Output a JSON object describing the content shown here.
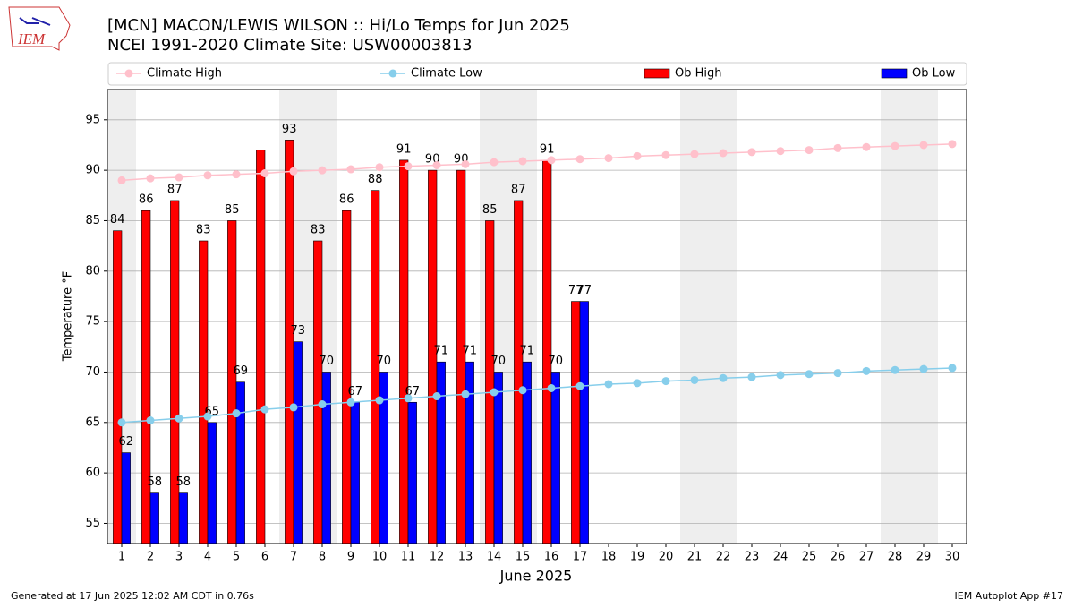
{
  "header": {
    "logo_text": "IEM"
  },
  "chart_data": {
    "type": "bar",
    "title": "[MCN] MACON/LEWIS WILSON :: Hi/Lo Temps for Jun 2025",
    "subtitle": "NCEI 1991-2020 Climate Site: USW00003813",
    "x_label": "June 2025",
    "y_label": "Temperature °F",
    "x": [
      1,
      2,
      3,
      4,
      5,
      6,
      7,
      8,
      9,
      10,
      11,
      12,
      13,
      14,
      15,
      16,
      17,
      18,
      19,
      20,
      21,
      22,
      23,
      24,
      25,
      26,
      27,
      28,
      29,
      30
    ],
    "xlim": [
      0.5,
      30.5
    ],
    "xticks": [
      1,
      2,
      3,
      4,
      5,
      6,
      7,
      8,
      9,
      10,
      11,
      12,
      13,
      14,
      15,
      16,
      17,
      18,
      19,
      20,
      21,
      22,
      23,
      24,
      25,
      26,
      27,
      28,
      29,
      30
    ],
    "ylim": [
      53,
      98
    ],
    "yticks": [
      55,
      60,
      65,
      70,
      75,
      80,
      85,
      90,
      95
    ],
    "grid": "y",
    "shaded_days": [
      1,
      7,
      8,
      14,
      15,
      21,
      22,
      28,
      29
    ],
    "legend": "top",
    "series": [
      {
        "name": "Climate High",
        "type": "line",
        "color": "#ffc0cb",
        "values": [
          89.0,
          89.2,
          89.3,
          89.5,
          89.6,
          89.7,
          89.9,
          90.0,
          90.1,
          90.3,
          90.4,
          90.5,
          90.6,
          90.8,
          90.9,
          91.0,
          91.1,
          91.2,
          91.4,
          91.5,
          91.6,
          91.7,
          91.8,
          91.9,
          92.0,
          92.2,
          92.3,
          92.4,
          92.5,
          92.6
        ]
      },
      {
        "name": "Climate Low",
        "type": "line",
        "color": "#87ceeb",
        "values": [
          65.0,
          65.2,
          65.4,
          65.6,
          65.9,
          66.3,
          66.5,
          66.8,
          67.0,
          67.2,
          67.4,
          67.6,
          67.8,
          68.0,
          68.2,
          68.4,
          68.6,
          68.8,
          68.9,
          69.1,
          69.2,
          69.4,
          69.5,
          69.7,
          69.8,
          69.9,
          70.1,
          70.2,
          70.3,
          70.4
        ]
      },
      {
        "name": "Ob High",
        "type": "bar",
        "color": "#ff0000",
        "values": [
          84,
          86,
          87,
          83,
          85,
          92,
          93,
          83,
          86,
          88,
          91,
          90,
          90,
          85,
          87,
          91,
          77,
          null,
          null,
          null,
          null,
          null,
          null,
          null,
          null,
          null,
          null,
          null,
          null,
          null
        ],
        "value_labels": [
          "84",
          "86",
          "87",
          "83",
          "85",
          null,
          "93",
          "83",
          "86",
          "88",
          "91",
          "90",
          "90",
          "85",
          "87",
          "91",
          "77",
          null,
          null,
          null,
          null,
          null,
          null,
          null,
          null,
          null,
          null,
          null,
          null,
          null
        ]
      },
      {
        "name": "Ob Low",
        "type": "bar",
        "color": "#0000ff",
        "values": [
          62,
          58,
          58,
          65,
          69,
          null,
          73,
          70,
          67,
          70,
          67,
          71,
          71,
          70,
          71,
          70,
          77,
          null,
          null,
          null,
          null,
          null,
          null,
          null,
          null,
          null,
          null,
          null,
          null,
          null
        ]
      }
    ]
  },
  "footer": {
    "left": "Generated at 17 Jun 2025 12:02 AM CDT in 0.76s",
    "right": "IEM Autoplot App #17"
  }
}
